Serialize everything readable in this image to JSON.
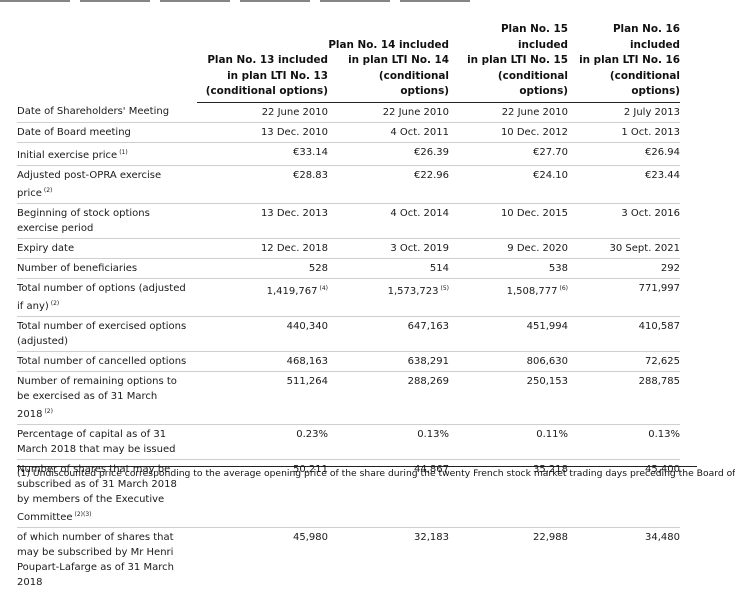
{
  "columns": [
    {
      "h1": "Plan No. 13 included",
      "h2": "in plan LTI No. 13",
      "h3": "(conditional options)"
    },
    {
      "h1": "Plan No. 14 included",
      "h2": "in plan LTI No. 14",
      "h3": "(conditional options)"
    },
    {
      "h1": "Plan No. 15 included",
      "h2": "in plan LTI No. 15",
      "h3": "(conditional options)"
    },
    {
      "h1": "Plan No. 16 included",
      "h2": "in plan LTI No. 16",
      "h3": "(conditional options)"
    }
  ],
  "rows": [
    {
      "label": "Date of Shareholders' Meeting",
      "vals": [
        "22 June 2010",
        "22 June 2010",
        "22 June 2010",
        "2 July 2013"
      ]
    },
    {
      "label": "Date of Board meeting",
      "vals": [
        "13 Dec. 2010",
        "4 Oct. 2011",
        "10 Dec. 2012",
        "1 Oct. 2013"
      ]
    },
    {
      "label": "Initial exercise price",
      "note": "(1)",
      "vals": [
        "€33.14",
        "€26.39",
        "€27.70",
        "€26.94"
      ]
    },
    {
      "label": "Adjusted post-OPRA exercise price",
      "note": "(2)",
      "vals": [
        "€28.83",
        "€22.96",
        "€24.10",
        "€23.44"
      ]
    },
    {
      "label": "Beginning of stock options exercise period",
      "vals": [
        "13 Dec. 2013",
        "4 Oct. 2014",
        "10 Dec. 2015",
        "3 Oct. 2016"
      ]
    },
    {
      "label": "Expiry date",
      "vals": [
        "12 Dec. 2018",
        "3 Oct. 2019",
        "9 Dec. 2020",
        "30 Sept. 2021"
      ]
    },
    {
      "label": "Number of beneficiaries",
      "vals": [
        "528",
        "514",
        "538",
        "292"
      ]
    },
    {
      "label": "Total number of options (adjusted if any)",
      "note": "(2)",
      "vals": [
        "1,419,767",
        "1,573,723",
        "1,508,777",
        "771,997"
      ],
      "val_notes": [
        "(4)",
        "(5)",
        "(6)",
        ""
      ]
    },
    {
      "label": "Total number of exercised options (adjusted)",
      "vals": [
        "440,340",
        "647,163",
        "451,994",
        "410,587"
      ]
    },
    {
      "label": "Total number of cancelled options",
      "vals": [
        "468,163",
        "638,291",
        "806,630",
        "72,625"
      ]
    },
    {
      "label": "Number of remaining options to be exercised as of 31 March 2018",
      "note": "(2)",
      "vals": [
        "511,264",
        "288,269",
        "250,153",
        "288,785"
      ]
    },
    {
      "label": "Percentage of capital as of 31 March 2018 that may be issued",
      "vals": [
        "0.23%",
        "0.13%",
        "0.11%",
        "0.13%"
      ]
    },
    {
      "label": "Number of shares that may be subscribed as of 31 March 2018 by members of the Executive Committee",
      "note": "(2)(3)",
      "vals": [
        "50,211",
        "44,867",
        "35,218",
        "45,400"
      ]
    },
    {
      "label": "of which number of shares that may be subscribed by Mr Henri Poupart-Lafarge as of 31 March 2018",
      "vals": [
        "45,980",
        "32,183",
        "22,988",
        "34,480"
      ]
    }
  ],
  "footnote": "(1) Undiscounted price corresponding to the average opening price of the share during the twenty French stock market trading days preceding the Board of"
}
